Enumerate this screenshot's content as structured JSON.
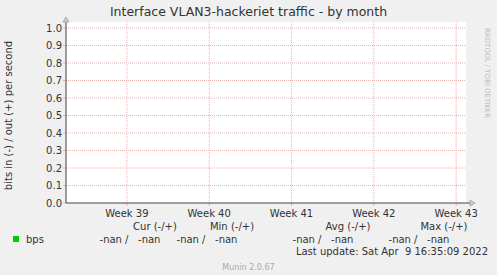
{
  "chart_data": {
    "type": "line",
    "title": "Interface VLAN3-hackeriet traffic - by month",
    "y_label": "bits in (-) / out (+) per second",
    "x": [
      39,
      40,
      41,
      42,
      43
    ],
    "xlim": [
      38.26,
      43.12
    ],
    "xticks": [
      {
        "value": 39,
        "label": "Week 39"
      },
      {
        "value": 40,
        "label": "Week 40"
      },
      {
        "value": 41,
        "label": "Week 41"
      },
      {
        "value": 42,
        "label": "Week 42"
      },
      {
        "value": 43,
        "label": "Week 43"
      }
    ],
    "ylim": [
      0,
      1
    ],
    "yticks": [
      {
        "value": 0,
        "label": "0.0"
      },
      0.1,
      0.2,
      0.3,
      0.4,
      0.5,
      0.6,
      0.7,
      0.8,
      0.9,
      {
        "value": 1,
        "label": "1.0"
      }
    ],
    "grid": true,
    "series": [
      {
        "name": "bps",
        "color": "#00cc00",
        "values": [
          null,
          null,
          null,
          null,
          null
        ]
      }
    ],
    "stats": {
      "headers": [
        "Cur (-/+)",
        "Min (-/+)",
        "Avg (-/+)",
        "Max (-/+)"
      ],
      "values": [
        "-nan /   -nan",
        "-nan /   -nan",
        "-nan /   -nan",
        "-nan /   -nan"
      ]
    },
    "last_update": "Last update: Sat Apr  9 16:35:09 2022",
    "footer": "Munin 2.0.67",
    "watermark": "RRDTOOL / TOBI OETIKER"
  }
}
